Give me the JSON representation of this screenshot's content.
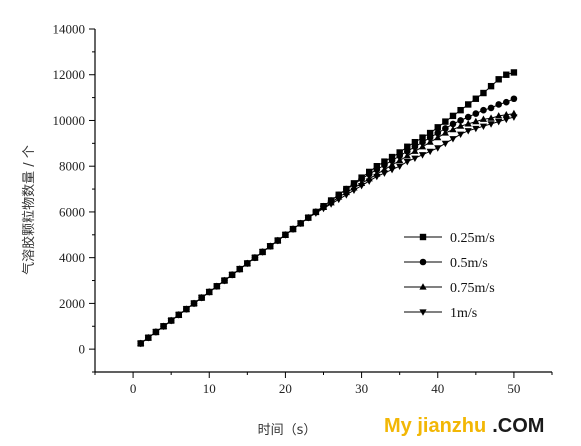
{
  "chart_data": {
    "type": "line",
    "xlabel": "时间（s）",
    "ylabel": "气溶胶颗粒物数量 / 个",
    "xlim": [
      -5,
      55
    ],
    "ylim": [
      -1000,
      14000
    ],
    "xticks": [
      0,
      10,
      20,
      30,
      40,
      50
    ],
    "yticks": [
      0,
      2000,
      4000,
      6000,
      8000,
      10000,
      12000,
      14000
    ],
    "grid": false,
    "legend_position": "right",
    "series": [
      {
        "name": "0.25m/s",
        "marker": "square",
        "x": [
          1,
          2,
          3,
          4,
          5,
          6,
          7,
          8,
          9,
          10,
          11,
          12,
          13,
          14,
          15,
          16,
          17,
          18,
          19,
          20,
          21,
          22,
          23,
          24,
          25,
          26,
          27,
          28,
          29,
          30,
          31,
          32,
          33,
          34,
          35,
          36,
          37,
          38,
          39,
          40,
          41,
          42,
          43,
          44,
          45,
          46,
          47,
          48,
          49,
          50
        ],
        "y": [
          250,
          500,
          750,
          1000,
          1250,
          1500,
          1750,
          2000,
          2250,
          2500,
          2750,
          3000,
          3250,
          3500,
          3750,
          4000,
          4250,
          4500,
          4750,
          5000,
          5250,
          5500,
          5750,
          6000,
          6250,
          6500,
          6750,
          7000,
          7250,
          7500,
          7750,
          8000,
          8200,
          8400,
          8600,
          8850,
          9050,
          9250,
          9450,
          9700,
          9950,
          10200,
          10450,
          10700,
          10950,
          11200,
          11500,
          11800,
          12000,
          12100
        ]
      },
      {
        "name": "0.5m/s",
        "marker": "circle",
        "x": [
          1,
          2,
          3,
          4,
          5,
          6,
          7,
          8,
          9,
          10,
          11,
          12,
          13,
          14,
          15,
          16,
          17,
          18,
          19,
          20,
          21,
          22,
          23,
          24,
          25,
          26,
          27,
          28,
          29,
          30,
          31,
          32,
          33,
          34,
          35,
          36,
          37,
          38,
          39,
          40,
          41,
          42,
          43,
          44,
          45,
          46,
          47,
          48,
          49,
          50
        ],
        "y": [
          250,
          500,
          750,
          1000,
          1250,
          1500,
          1750,
          2000,
          2250,
          2500,
          2750,
          3000,
          3250,
          3500,
          3750,
          4000,
          4250,
          4500,
          4750,
          5000,
          5250,
          5500,
          5750,
          6000,
          6250,
          6500,
          6750,
          7000,
          7200,
          7450,
          7650,
          7850,
          8050,
          8250,
          8450,
          8650,
          8850,
          9050,
          9250,
          9450,
          9650,
          9850,
          10000,
          10150,
          10300,
          10450,
          10550,
          10700,
          10800,
          10950
        ]
      },
      {
        "name": "0.75m/s",
        "marker": "triangle-up",
        "x": [
          1,
          2,
          3,
          4,
          5,
          6,
          7,
          8,
          9,
          10,
          11,
          12,
          13,
          14,
          15,
          16,
          17,
          18,
          19,
          20,
          21,
          22,
          23,
          24,
          25,
          26,
          27,
          28,
          29,
          30,
          31,
          32,
          33,
          34,
          35,
          36,
          37,
          38,
          39,
          40,
          41,
          42,
          43,
          44,
          45,
          46,
          47,
          48,
          49,
          50
        ],
        "y": [
          250,
          500,
          750,
          1000,
          1250,
          1500,
          1750,
          2000,
          2250,
          2500,
          2750,
          3000,
          3250,
          3500,
          3750,
          4000,
          4250,
          4500,
          4750,
          5000,
          5250,
          5500,
          5750,
          6000,
          6200,
          6400,
          6650,
          6850,
          7050,
          7250,
          7450,
          7650,
          7850,
          8050,
          8250,
          8450,
          8650,
          8850,
          9050,
          9250,
          9450,
          9600,
          9750,
          9850,
          9950,
          10050,
          10100,
          10200,
          10250,
          10300
        ]
      },
      {
        "name": "1m/s",
        "marker": "triangle-down",
        "x": [
          1,
          2,
          3,
          4,
          5,
          6,
          7,
          8,
          9,
          10,
          11,
          12,
          13,
          14,
          15,
          16,
          17,
          18,
          19,
          20,
          21,
          22,
          23,
          24,
          25,
          26,
          27,
          28,
          29,
          30,
          31,
          32,
          33,
          34,
          35,
          36,
          37,
          38,
          39,
          40,
          41,
          42,
          43,
          44,
          45,
          46,
          47,
          48,
          49,
          50
        ],
        "y": [
          250,
          500,
          750,
          1000,
          1250,
          1500,
          1750,
          2000,
          2250,
          2500,
          2750,
          3000,
          3250,
          3500,
          3750,
          4000,
          4250,
          4500,
          4750,
          5000,
          5250,
          5500,
          5750,
          5950,
          6150,
          6350,
          6550,
          6750,
          6950,
          7150,
          7350,
          7550,
          7700,
          7850,
          8000,
          8200,
          8350,
          8500,
          8650,
          8800,
          9000,
          9200,
          9400,
          9550,
          9650,
          9750,
          9850,
          9950,
          10050,
          10150
        ]
      }
    ]
  },
  "watermark": {
    "part1": "My jianzhu",
    "part2": ".COM",
    "color1": "#f2b705",
    "color2": "#1a1a1a"
  }
}
